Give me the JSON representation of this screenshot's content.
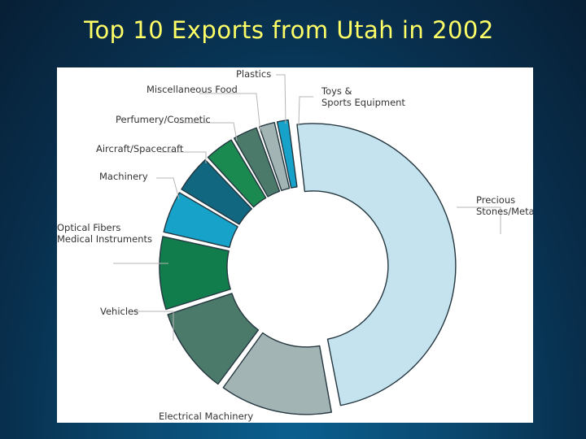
{
  "slide": {
    "title": "Top 10 Exports from Utah in 2002"
  },
  "chart_data": {
    "type": "pie",
    "variant": "exploded donut",
    "title": "Top 10 Exports from Utah in 2002",
    "value_unit": "share of total exports (%)",
    "values_estimated": true,
    "slices": [
      {
        "label": "Precious Stones/Metals",
        "lines": [
          "Precious",
          "Stones/Metals"
        ],
        "value": 49.0,
        "color": "#c4e3ee"
      },
      {
        "label": "Electrical Machinery",
        "lines": [
          "Electrical Machinery"
        ],
        "value": 13.0,
        "color": "#a3b4b5"
      },
      {
        "label": "Vehicles",
        "lines": [
          "Vehicles"
        ],
        "value": 10.0,
        "color": "#4c7a6a"
      },
      {
        "label": "Optical Fibers Medical Instruments",
        "lines": [
          "Optical Fibers",
          "Medical Instruments"
        ],
        "value": 8.5,
        "color": "#127d4c"
      },
      {
        "label": "Machinery",
        "lines": [
          "Machinery"
        ],
        "value": 5.0,
        "color": "#17a2c9"
      },
      {
        "label": "Aircraft/Spacecraft",
        "lines": [
          "Aircraft/Spacecraft"
        ],
        "value": 4.5,
        "color": "#10677f"
      },
      {
        "label": "Perfumery/Cosmetic",
        "lines": [
          "Perfumery/Cosmetic"
        ],
        "value": 3.5,
        "color": "#1a8a50"
      },
      {
        "label": "Miscellaneous Food",
        "lines": [
          "Miscellaneous Food"
        ],
        "value": 3.0,
        "color": "#4c7a6a"
      },
      {
        "label": "Plastics",
        "lines": [
          "Plastics"
        ],
        "value": 2.0,
        "color": "#a3b4b5"
      },
      {
        "label": "Toys & Sports Equipment",
        "lines": [
          "Toys &",
          "Sports Equipment"
        ],
        "value": 1.5,
        "color": "#17a2c9"
      }
    ],
    "legend": "none (callout labels with leader lines)"
  }
}
